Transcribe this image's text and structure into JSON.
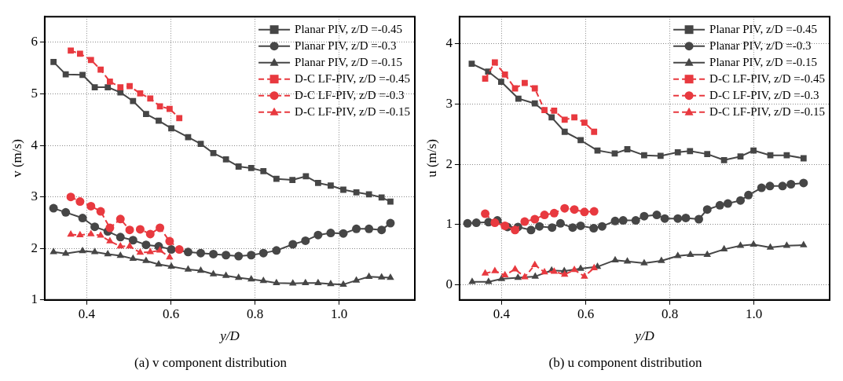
{
  "chart_data": [
    {
      "type": "line",
      "title": "(a) v component distribution",
      "xlabel": "y/D",
      "ylabel": "v (m/s)",
      "xlim": [
        0.3,
        1.18
      ],
      "ylim": [
        1,
        6.5
      ],
      "xticks": [
        0.4,
        0.6,
        0.8,
        {
          "value": 1,
          "label": "1.0"
        }
      ],
      "yticks": [
        1,
        2,
        3,
        4,
        5,
        6
      ],
      "grid": true,
      "legend": "top right",
      "series": [
        {
          "name": "Planar PIV, z/D =-0.45",
          "color": "#464646",
          "marker": "square",
          "line_style": "solid",
          "x": [
            0.321,
            0.35,
            0.39,
            0.419,
            0.45,
            0.48,
            0.51,
            0.541,
            0.571,
            0.601,
            0.641,
            0.671,
            0.701,
            0.731,
            0.761,
            0.791,
            0.82,
            0.851,
            0.889,
            0.921,
            0.95,
            0.98,
            1.01,
            1.041,
            1.071,
            1.101,
            1.122
          ],
          "values": [
            5.62,
            5.38,
            5.37,
            5.13,
            5.13,
            5.03,
            4.86,
            4.61,
            4.48,
            4.33,
            4.16,
            4.03,
            3.85,
            3.73,
            3.59,
            3.56,
            3.5,
            3.35,
            3.33,
            3.4,
            3.27,
            3.22,
            3.14,
            3.09,
            3.05,
            2.99,
            2.91
          ]
        },
        {
          "name": "Planar PIV, z/D =-0.3",
          "color": "#464646",
          "marker": "circle",
          "line_style": "solid",
          "x": [
            0.321,
            0.35,
            0.39,
            0.419,
            0.45,
            0.48,
            0.51,
            0.541,
            0.571,
            0.601,
            0.641,
            0.671,
            0.701,
            0.731,
            0.761,
            0.791,
            0.82,
            0.851,
            0.89,
            0.92,
            0.95,
            0.98,
            1.01,
            1.041,
            1.071,
            1.101,
            1.122
          ],
          "values": [
            2.78,
            2.7,
            2.59,
            2.42,
            2.33,
            2.22,
            2.16,
            2.07,
            2.04,
            1.98,
            1.93,
            1.91,
            1.89,
            1.87,
            1.85,
            1.87,
            1.91,
            1.96,
            2.08,
            2.15,
            2.26,
            2.3,
            2.29,
            2.38,
            2.38,
            2.36,
            2.49
          ]
        },
        {
          "name": "Planar PIV, z/D =-0.15",
          "color": "#464646",
          "marker": "triangle",
          "line_style": "solid",
          "x": [
            0.321,
            0.35,
            0.39,
            0.419,
            0.45,
            0.48,
            0.51,
            0.541,
            0.571,
            0.601,
            0.641,
            0.671,
            0.701,
            0.731,
            0.761,
            0.791,
            0.82,
            0.851,
            0.89,
            0.92,
            0.95,
            0.98,
            1.01,
            1.041,
            1.071,
            1.101,
            1.122
          ],
          "values": [
            1.93,
            1.9,
            1.95,
            1.93,
            1.89,
            1.86,
            1.8,
            1.76,
            1.69,
            1.65,
            1.59,
            1.57,
            1.5,
            1.47,
            1.43,
            1.4,
            1.37,
            1.33,
            1.32,
            1.33,
            1.33,
            1.31,
            1.3,
            1.38,
            1.45,
            1.44,
            1.43
          ]
        },
        {
          "name": "D-C LF-PIV, z/D =-0.45",
          "color": "#e8393f",
          "marker": "square",
          "line_style": "dashed",
          "x": [
            0.362,
            0.384,
            0.41,
            0.433,
            0.455,
            0.48,
            0.502,
            0.527,
            0.551,
            0.574,
            0.597,
            0.62
          ],
          "values": [
            5.84,
            5.78,
            5.66,
            5.47,
            5.24,
            5.13,
            5.15,
            5.01,
            4.91,
            4.76,
            4.71,
            4.53
          ]
        },
        {
          "name": "D-C LF-PIV, z/D =-0.3",
          "color": "#e8393f",
          "marker": "circle",
          "line_style": "dashed",
          "x": [
            0.362,
            0.384,
            0.41,
            0.433,
            0.455,
            0.48,
            0.502,
            0.527,
            0.551,
            0.574,
            0.597,
            0.62
          ],
          "values": [
            3.0,
            2.91,
            2.82,
            2.72,
            2.4,
            2.57,
            2.36,
            2.37,
            2.28,
            2.4,
            2.14,
            1.98
          ]
        },
        {
          "name": "D-C LF-PIV, z/D =-0.15",
          "color": "#e8393f",
          "marker": "triangle",
          "line_style": "dashed",
          "x": [
            0.362,
            0.384,
            0.41,
            0.433,
            0.455,
            0.48,
            0.502,
            0.527,
            0.551,
            0.574,
            0.597
          ],
          "values": [
            2.27,
            2.26,
            2.28,
            2.25,
            2.14,
            2.04,
            2.04,
            1.92,
            1.93,
            1.96,
            1.83
          ]
        }
      ]
    },
    {
      "type": "line",
      "title": "(b) u component distribution",
      "xlabel": "y/D",
      "ylabel": "u (m/s)",
      "xlim": [
        0.3,
        1.18
      ],
      "ylim": [
        -0.25,
        4.45
      ],
      "xticks": [
        0.4,
        0.6,
        0.8,
        {
          "value": 1,
          "label": "1.0"
        }
      ],
      "yticks": [
        0,
        1,
        2,
        3,
        4
      ],
      "grid": true,
      "legend": "top right",
      "series": [
        {
          "name": "Planar PIV, z/D =-0.45",
          "color": "#464646",
          "marker": "square",
          "line_style": "solid",
          "x": [
            0.329,
            0.368,
            0.399,
            0.44,
            0.479,
            0.519,
            0.55,
            0.588,
            0.628,
            0.669,
            0.699,
            0.739,
            0.778,
            0.819,
            0.848,
            0.889,
            0.929,
            0.968,
            0.999,
            1.039,
            1.078,
            1.118
          ],
          "values": [
            3.67,
            3.54,
            3.37,
            3.09,
            3.01,
            2.78,
            2.54,
            2.4,
            2.23,
            2.18,
            2.25,
            2.15,
            2.14,
            2.2,
            2.22,
            2.17,
            2.07,
            2.13,
            2.23,
            2.15,
            2.15,
            2.1
          ]
        },
        {
          "name": "Planar PIV, z/D =-0.3",
          "color": "#464646",
          "marker": "circle",
          "line_style": "solid",
          "x": [
            0.319,
            0.34,
            0.369,
            0.39,
            0.414,
            0.439,
            0.47,
            0.49,
            0.52,
            0.54,
            0.569,
            0.588,
            0.619,
            0.639,
            0.67,
            0.689,
            0.719,
            0.739,
            0.769,
            0.788,
            0.819,
            0.838,
            0.869,
            0.889,
            0.919,
            0.938,
            0.968,
            0.987,
            1.018,
            1.038,
            1.068,
            1.088,
            1.118
          ],
          "values": [
            1.02,
            1.03,
            1.04,
            1.07,
            0.96,
            0.96,
            0.91,
            0.97,
            0.95,
            1.02,
            0.95,
            0.98,
            0.94,
            0.97,
            1.06,
            1.07,
            1.07,
            1.14,
            1.16,
            1.1,
            1.1,
            1.11,
            1.09,
            1.25,
            1.32,
            1.35,
            1.4,
            1.49,
            1.61,
            1.64,
            1.64,
            1.67,
            1.69
          ]
        },
        {
          "name": "Planar PIV, z/D =-0.15",
          "color": "#464646",
          "marker": "triangle",
          "line_style": "solid",
          "x": [
            0.33,
            0.369,
            0.4,
            0.439,
            0.48,
            0.519,
            0.549,
            0.588,
            0.628,
            0.67,
            0.699,
            0.739,
            0.78,
            0.819,
            0.849,
            0.889,
            0.929,
            0.968,
            0.999,
            1.039,
            1.078,
            1.118
          ],
          "values": [
            0.05,
            0.05,
            0.1,
            0.12,
            0.14,
            0.24,
            0.23,
            0.27,
            0.3,
            0.41,
            0.39,
            0.36,
            0.4,
            0.48,
            0.5,
            0.5,
            0.59,
            0.65,
            0.67,
            0.62,
            0.65,
            0.66
          ]
        },
        {
          "name": "D-C LF-PIV, z/D =-0.45",
          "color": "#e8393f",
          "marker": "square",
          "line_style": "dashed",
          "x": [
            0.361,
            0.384,
            0.408,
            0.432,
            0.455,
            0.479,
            0.502,
            0.525,
            0.55,
            0.573,
            0.597,
            0.62
          ],
          "values": [
            3.42,
            3.69,
            3.49,
            3.26,
            3.35,
            3.26,
            2.9,
            2.89,
            2.74,
            2.78,
            2.69,
            2.54
          ]
        },
        {
          "name": "D-C LF-PIV, z/D =-0.3",
          "color": "#e8393f",
          "marker": "circle",
          "line_style": "dashed",
          "x": [
            0.361,
            0.384,
            0.408,
            0.432,
            0.455,
            0.479,
            0.502,
            0.525,
            0.55,
            0.573,
            0.597,
            0.62
          ],
          "values": [
            1.18,
            1.03,
            0.98,
            0.91,
            1.05,
            1.09,
            1.16,
            1.19,
            1.27,
            1.25,
            1.21,
            1.22
          ]
        },
        {
          "name": "D-C LF-PIV, z/D =-0.15",
          "color": "#e8393f",
          "marker": "triangle",
          "line_style": "dashed",
          "x": [
            0.361,
            0.384,
            0.408,
            0.432,
            0.455,
            0.479,
            0.502,
            0.525,
            0.55,
            0.573,
            0.597,
            0.62
          ],
          "values": [
            0.19,
            0.23,
            0.16,
            0.26,
            0.13,
            0.33,
            0.21,
            0.22,
            0.17,
            0.25,
            0.14,
            0.28
          ]
        }
      ]
    }
  ]
}
